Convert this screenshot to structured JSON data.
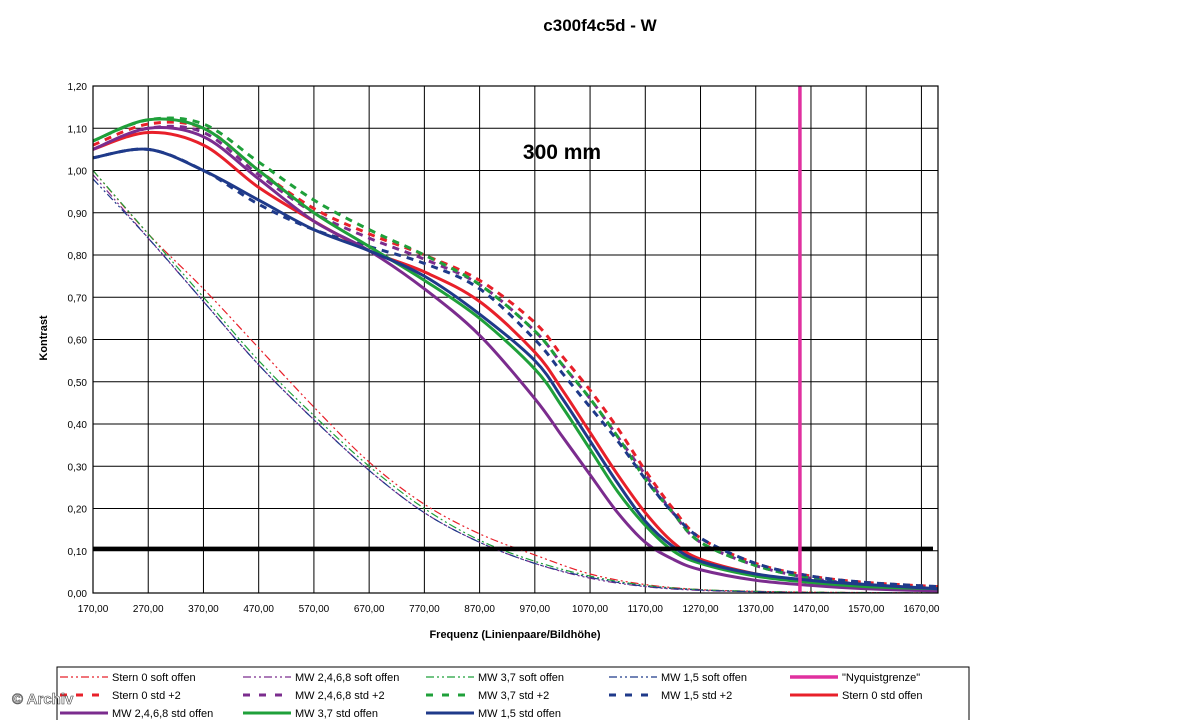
{
  "chart_data": {
    "type": "line",
    "title": "c300f4c5d - W",
    "xlabel": "Frequenz (Linienpaare/Bildhöhe)",
    "ylabel": "Kontrast",
    "annotation": "300 mm",
    "watermark": "© Archiv",
    "xlim": [
      170,
      1700
    ],
    "ylim": [
      0,
      1.2
    ],
    "x_ticks": [
      "170,00",
      "270,00",
      "370,00",
      "470,00",
      "570,00",
      "670,00",
      "770,00",
      "870,00",
      "970,00",
      "1070,00",
      "1170,00",
      "1270,00",
      "1370,00",
      "1470,00",
      "1570,00",
      "1670,00"
    ],
    "y_ticks": [
      "0,00",
      "0,10",
      "0,20",
      "0,30",
      "0,40",
      "0,50",
      "0,60",
      "0,70",
      "0,80",
      "0,90",
      "1,00",
      "1,10",
      "1,20"
    ],
    "grid": true,
    "legend_position": "bottom",
    "threshold_line": {
      "y": 0.105,
      "color": "#000000"
    },
    "nyquist_line": {
      "x": 1450,
      "color": "#e0309f"
    },
    "series": [
      {
        "name": "Stern 0 soft offen",
        "color": "#e8202a",
        "style": "dashdotdot",
        "width": 1.2,
        "x": [
          170,
          270,
          370,
          470,
          570,
          670,
          770,
          870,
          970,
          1070,
          1170,
          1270,
          1370,
          1470,
          1700
        ],
        "y": [
          1.0,
          0.85,
          0.72,
          0.58,
          0.44,
          0.31,
          0.21,
          0.14,
          0.09,
          0.045,
          0.02,
          0.008,
          0.004,
          0.002,
          0.0
        ]
      },
      {
        "name": "MW 2,4,6,8 soft offen",
        "color": "#7b2c8e",
        "style": "dashdotdot",
        "width": 1.2,
        "x": [
          170,
          270,
          370,
          470,
          570,
          670,
          770,
          870,
          970,
          1070,
          1170,
          1270,
          1370,
          1470,
          1700
        ],
        "y": [
          0.99,
          0.84,
          0.69,
          0.54,
          0.41,
          0.29,
          0.19,
          0.12,
          0.07,
          0.035,
          0.015,
          0.006,
          0.003,
          0.001,
          0.0
        ]
      },
      {
        "name": "MW 3,7 soft offen",
        "color": "#1fa03a",
        "style": "dashdotdot",
        "width": 1.2,
        "x": [
          170,
          270,
          370,
          470,
          570,
          670,
          770,
          870,
          970,
          1070,
          1170,
          1270,
          1370,
          1470,
          1700
        ],
        "y": [
          1.0,
          0.85,
          0.7,
          0.55,
          0.42,
          0.3,
          0.2,
          0.125,
          0.075,
          0.04,
          0.018,
          0.008,
          0.004,
          0.002,
          0.0
        ]
      },
      {
        "name": "MW 1,5 soft offen",
        "color": "#1f3a8a",
        "style": "dashdotdot",
        "width": 1.2,
        "x": [
          170,
          270,
          370,
          470,
          570,
          670,
          770,
          870,
          970,
          1070,
          1170,
          1270,
          1370,
          1470,
          1700
        ],
        "y": [
          0.98,
          0.84,
          0.69,
          0.54,
          0.41,
          0.29,
          0.19,
          0.12,
          0.07,
          0.037,
          0.016,
          0.007,
          0.003,
          0.001,
          0.0
        ]
      },
      {
        "name": "\"Nyquistgrenze\"",
        "color": "#e0309f",
        "style": "solid",
        "width": 3.5,
        "x": [
          1450,
          1450
        ],
        "y": [
          0,
          1.2
        ]
      },
      {
        "name": "Stern 0 std +2",
        "color": "#e8202a",
        "style": "dash",
        "width": 3,
        "x": [
          170,
          270,
          370,
          470,
          570,
          670,
          770,
          870,
          970,
          1020,
          1070,
          1120,
          1170,
          1220,
          1270,
          1370,
          1470,
          1570,
          1700
        ],
        "y": [
          1.06,
          1.11,
          1.1,
          1.0,
          0.91,
          0.85,
          0.8,
          0.74,
          0.64,
          0.56,
          0.48,
          0.39,
          0.29,
          0.2,
          0.13,
          0.07,
          0.04,
          0.025,
          0.015
        ]
      },
      {
        "name": "MW 2,4,6,8 std +2",
        "color": "#7b2c8e",
        "style": "dash",
        "width": 3,
        "x": [
          170,
          270,
          370,
          470,
          570,
          670,
          770,
          870,
          970,
          1020,
          1070,
          1120,
          1170,
          1220,
          1270,
          1370,
          1470,
          1570,
          1700
        ],
        "y": [
          1.05,
          1.1,
          1.09,
          0.99,
          0.9,
          0.84,
          0.79,
          0.73,
          0.62,
          0.54,
          0.46,
          0.37,
          0.28,
          0.19,
          0.12,
          0.065,
          0.035,
          0.02,
          0.01
        ]
      },
      {
        "name": "MW 3,7 std +2",
        "color": "#1fa03a",
        "style": "dash",
        "width": 3,
        "x": [
          170,
          270,
          370,
          470,
          570,
          670,
          770,
          870,
          970,
          1020,
          1070,
          1120,
          1170,
          1220,
          1270,
          1370,
          1470,
          1570,
          1700
        ],
        "y": [
          1.07,
          1.12,
          1.11,
          1.02,
          0.93,
          0.86,
          0.8,
          0.73,
          0.62,
          0.54,
          0.46,
          0.37,
          0.27,
          0.19,
          0.12,
          0.065,
          0.035,
          0.02,
          0.01
        ]
      },
      {
        "name": "MW 1,5 std +2",
        "color": "#1f3a8a",
        "style": "dash",
        "width": 3,
        "x": [
          170,
          270,
          370,
          470,
          570,
          670,
          770,
          870,
          970,
          1020,
          1070,
          1120,
          1170,
          1220,
          1270,
          1370,
          1470,
          1570,
          1700
        ],
        "y": [
          1.03,
          1.05,
          1.0,
          0.92,
          0.86,
          0.82,
          0.78,
          0.72,
          0.6,
          0.52,
          0.44,
          0.36,
          0.27,
          0.19,
          0.13,
          0.07,
          0.04,
          0.025,
          0.015
        ]
      },
      {
        "name": "Stern 0 std offen",
        "color": "#e8202a",
        "style": "solid",
        "width": 3,
        "x": [
          170,
          270,
          370,
          470,
          570,
          670,
          770,
          870,
          970,
          1020,
          1070,
          1120,
          1170,
          1220,
          1270,
          1370,
          1470,
          1570,
          1700
        ],
        "y": [
          1.05,
          1.09,
          1.06,
          0.96,
          0.88,
          0.81,
          0.76,
          0.69,
          0.57,
          0.48,
          0.38,
          0.28,
          0.19,
          0.12,
          0.08,
          0.045,
          0.025,
          0.015,
          0.01
        ]
      },
      {
        "name": "MW 2,4,6,8 std offen",
        "color": "#7b2c8e",
        "style": "solid",
        "width": 3,
        "x": [
          170,
          270,
          370,
          470,
          570,
          670,
          770,
          870,
          970,
          1020,
          1070,
          1120,
          1170,
          1220,
          1270,
          1370,
          1470,
          1570,
          1700
        ],
        "y": [
          1.05,
          1.1,
          1.08,
          0.98,
          0.88,
          0.81,
          0.72,
          0.61,
          0.46,
          0.37,
          0.28,
          0.19,
          0.12,
          0.08,
          0.055,
          0.03,
          0.018,
          0.01,
          0.005
        ]
      },
      {
        "name": "MW 3,7 std offen",
        "color": "#1fa03a",
        "style": "solid",
        "width": 3,
        "x": [
          170,
          270,
          370,
          470,
          570,
          670,
          770,
          870,
          970,
          1020,
          1070,
          1120,
          1170,
          1220,
          1270,
          1370,
          1470,
          1570,
          1700
        ],
        "y": [
          1.07,
          1.12,
          1.1,
          1.0,
          0.9,
          0.82,
          0.74,
          0.65,
          0.53,
          0.44,
          0.34,
          0.24,
          0.16,
          0.1,
          0.07,
          0.04,
          0.025,
          0.015,
          0.01
        ]
      },
      {
        "name": "MW 1,5 std offen",
        "color": "#1f3a8a",
        "style": "solid",
        "width": 3,
        "x": [
          170,
          270,
          370,
          470,
          570,
          670,
          770,
          870,
          970,
          1020,
          1070,
          1120,
          1170,
          1220,
          1270,
          1370,
          1470,
          1570,
          1700
        ],
        "y": [
          1.03,
          1.05,
          1.0,
          0.93,
          0.86,
          0.81,
          0.75,
          0.66,
          0.55,
          0.46,
          0.36,
          0.26,
          0.17,
          0.11,
          0.075,
          0.045,
          0.03,
          0.02,
          0.01
        ]
      }
    ]
  }
}
